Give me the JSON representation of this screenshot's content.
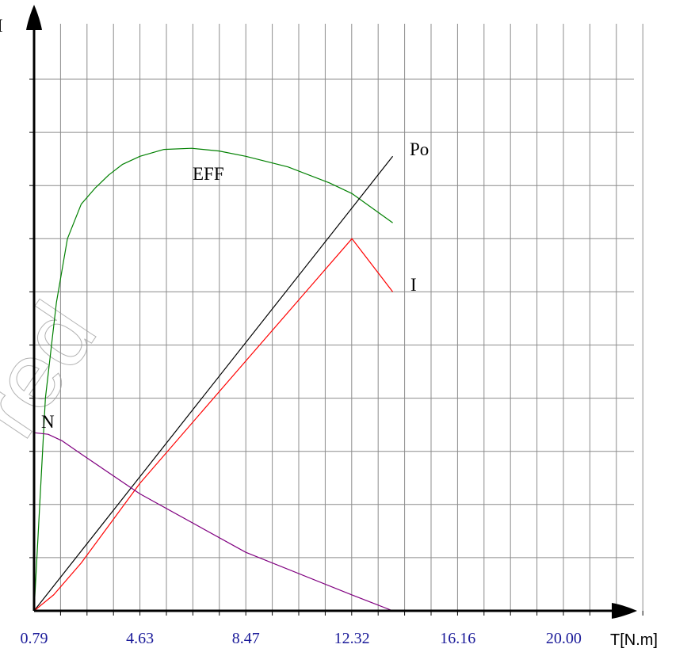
{
  "chart_data": {
    "type": "line",
    "x_axis": {
      "label": "T[N.m]",
      "tick_labels": [
        "0.79",
        "4.63",
        "8.47",
        "12.32",
        "16.16",
        "20.00"
      ],
      "range": [
        0.79,
        22.9
      ]
    },
    "y_axis": {
      "label": "I",
      "range": [
        0,
        11
      ],
      "tick_labels": []
    },
    "grid": true,
    "legend": "none",
    "series": [
      {
        "name": "EFF",
        "color": "#008000",
        "x": [
          0.79,
          1.2,
          1.6,
          2.0,
          2.5,
          3.0,
          3.5,
          4.0,
          4.63,
          5.5,
          6.5,
          7.5,
          8.47,
          10.0,
          11.5,
          12.32,
          13.8
        ],
        "y": [
          0.0,
          4.0,
          5.8,
          7.0,
          7.65,
          7.95,
          8.2,
          8.4,
          8.55,
          8.68,
          8.7,
          8.65,
          8.55,
          8.35,
          8.05,
          7.85,
          7.3
        ]
      },
      {
        "name": "Po",
        "color": "#000000",
        "x": [
          0.79,
          13.8
        ],
        "y": [
          0.0,
          8.55
        ]
      },
      {
        "name": "I",
        "color": "#ff0000",
        "x": [
          0.79,
          1.5,
          2.5,
          4.63,
          8.47,
          12.32,
          13.8
        ],
        "y": [
          0.0,
          0.3,
          0.9,
          2.4,
          4.7,
          7.0,
          6.0
        ]
      },
      {
        "name": "N",
        "color": "#800080",
        "x": [
          0.79,
          1.3,
          1.8,
          2.5,
          4.63,
          8.47,
          12.32,
          13.8
        ],
        "y": [
          3.35,
          3.32,
          3.2,
          2.95,
          2.2,
          1.1,
          0.3,
          0.0
        ]
      }
    ],
    "annotations": [
      "EFF",
      "Po",
      "I",
      "N"
    ],
    "watermark": "red"
  }
}
